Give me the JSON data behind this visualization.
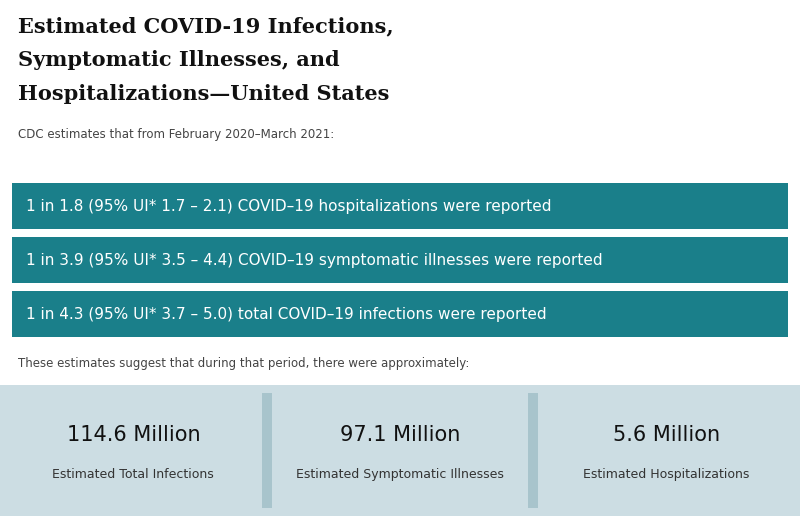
{
  "title_line1": "Estimated COVID-19 Infections,",
  "title_line2": "Symptomatic Illnesses, and",
  "title_line3": "Hospitalizations—United States",
  "subtitle": "CDC estimates that from February 2020–March 2021:",
  "banner_color": "#1a7f8a",
  "banners": [
    "1 in 1.8 (95% UI* 1.7 – 2.1) COVID–19 hospitalizations were reported",
    "1 in 3.9 (95% UI* 3.5 – 4.4) COVID–19 symptomatic illnesses were reported",
    "1 in 4.3 (95% UI* 3.7 – 5.0) total COVID–19 infections were reported"
  ],
  "footer_text": "These estimates suggest that during that period, there were approximately:",
  "stats": [
    {
      "value": "114.6 Million",
      "label": "Estimated Total Infections"
    },
    {
      "value": "97.1 Million",
      "label": "Estimated Symptomatic Illnesses"
    },
    {
      "value": "5.6 Million",
      "label": "Estimated Hospitalizations"
    }
  ],
  "stat_bg_color": "#ccdde3",
  "stat_divider_color": "#a8c4cc",
  "background_color": "#ffffff",
  "title_fontsize": 15,
  "banner_fontsize": 11,
  "stat_value_fontsize": 15,
  "stat_label_fontsize": 9
}
